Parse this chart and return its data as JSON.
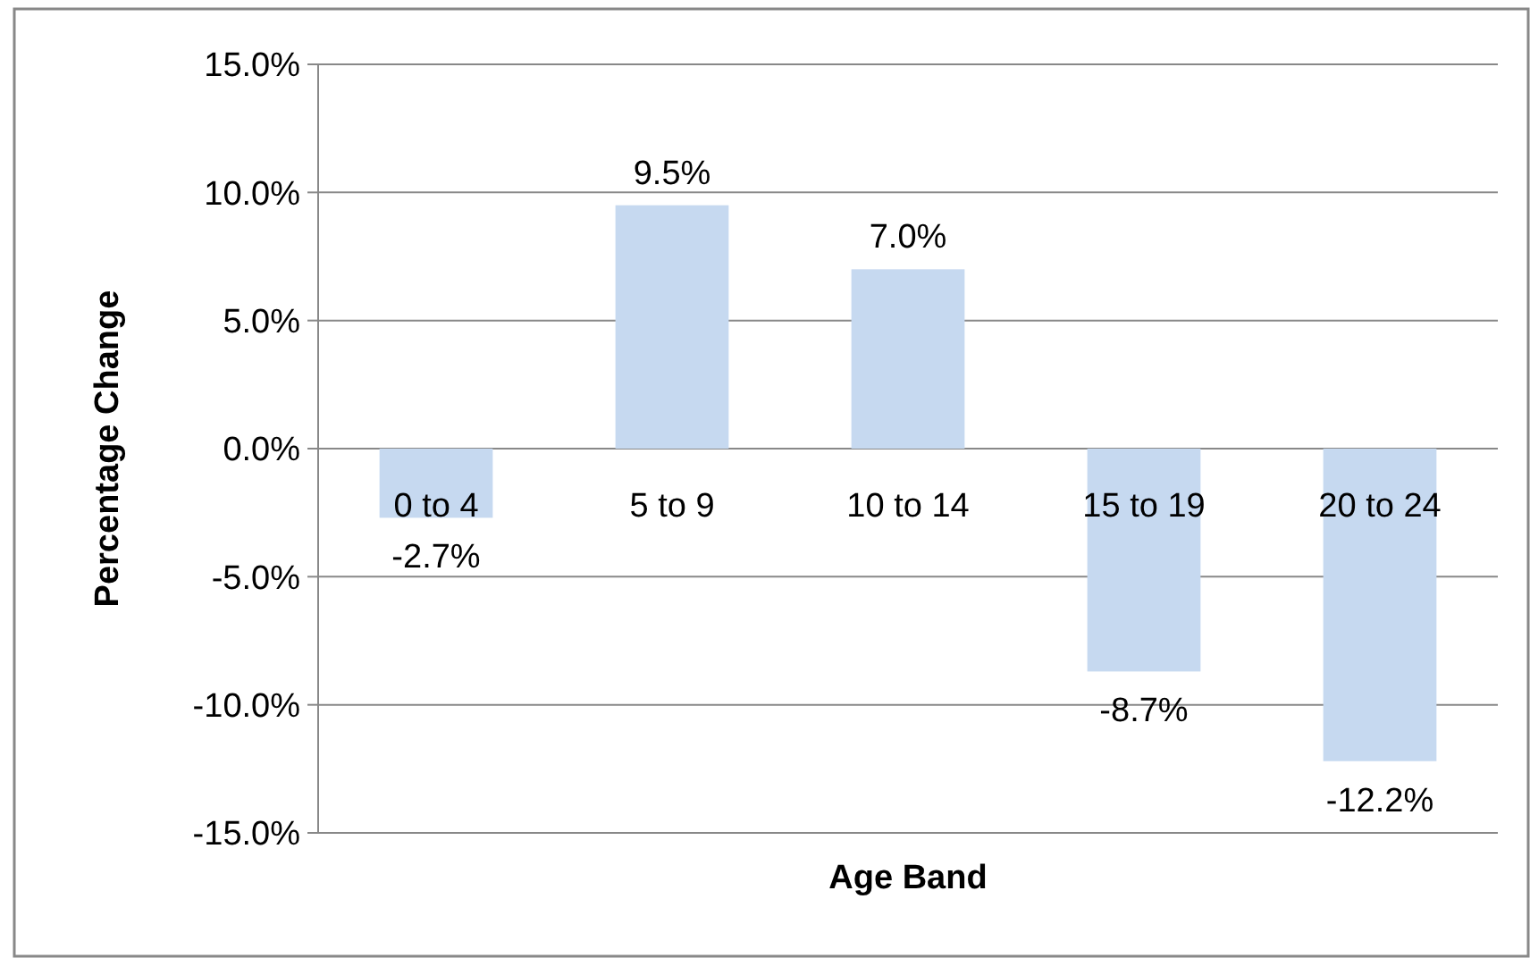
{
  "chart_data": {
    "type": "bar",
    "xlabel": "Age Band",
    "ylabel": "Percentage Change",
    "categories": [
      "0 to 4",
      "5 to 9",
      "10 to 14",
      "15 to 19",
      "20 to 24"
    ],
    "values": [
      -2.7,
      9.5,
      7.0,
      -8.7,
      -12.2
    ],
    "value_labels": [
      "-2.7%",
      "9.5%",
      "7.0%",
      "-8.7%",
      "-12.2%"
    ],
    "color": "#c6d9f0",
    "ylim": [
      -15,
      15
    ],
    "yticks": [
      {
        "value": -15,
        "label": "-15.0%"
      },
      {
        "value": -10,
        "label": "-10.0%"
      },
      {
        "value": -5,
        "label": "-5.0%"
      },
      {
        "value": 0,
        "label": "0.0%"
      },
      {
        "value": 5,
        "label": "5.0%"
      },
      {
        "value": 10,
        "label": "10.0%"
      },
      {
        "value": 15,
        "label": "15.0%"
      }
    ],
    "grid": "y"
  }
}
